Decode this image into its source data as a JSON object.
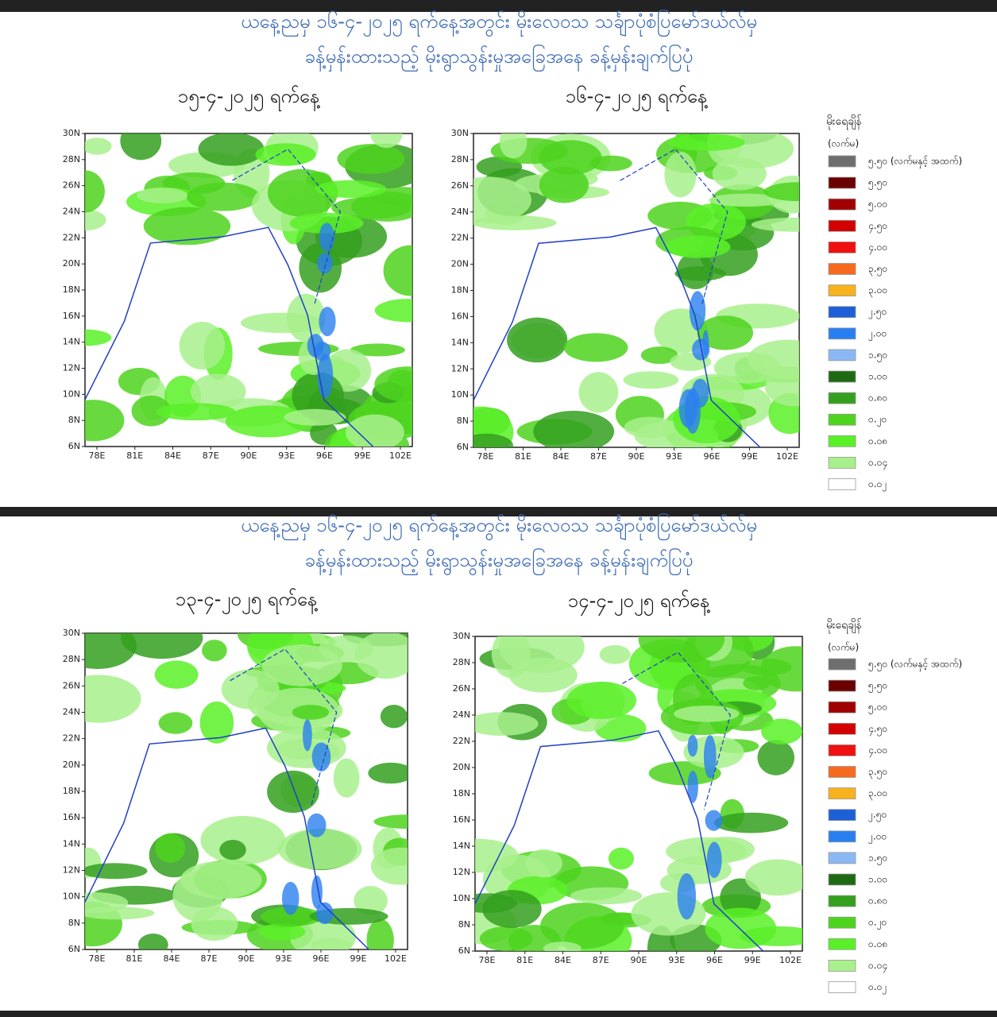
{
  "header": {
    "lines": [
      "ယနေ့ညမှ ၁၆-၄-၂၀၂၅ ရက်နေ့အတွင်း မိုးလေဝသ သင်္ချာပုံစံပြမော်ဒယ်လ်မှ",
      "ခန့်မှန်းထားသည့် မိုးရွာသွန်းမှုအခြေအနေ ခန့်မှန်းချက်ပြပုံ"
    ]
  },
  "maps": [
    {
      "date": "၁၅-၄-၂၀၂၅ ရက်နေ့"
    },
    {
      "date": "၁၆-၄-၂၀၂၅ ရက်နေ့"
    },
    {
      "date": "၁၃-၄-၂၀၂၅ ရက်နေ့"
    },
    {
      "date": "၁၄-၄-၂၀၂၅ ရက်နေ့"
    }
  ],
  "axes": {
    "xticks": [
      "78E",
      "81E",
      "84E",
      "87E",
      "90E",
      "93E",
      "96E",
      "99E",
      "102E"
    ],
    "yticks": [
      "6N",
      "8N",
      "10N",
      "12N",
      "14N",
      "16N",
      "18N",
      "20N",
      "22N",
      "24N",
      "26N",
      "28N",
      "30N"
    ]
  },
  "legend": {
    "title": "မိုးရေချိန်",
    "unit": "(လက်မ)",
    "items": [
      {
        "label": "၅.၅၀ (လက်မနှင့် အထက်)",
        "color": "#6e6e6e"
      },
      {
        "label": "၅.၅၀",
        "color": "#6b0000"
      },
      {
        "label": "၅.၀၀",
        "color": "#a00000"
      },
      {
        "label": "၄.၅၀",
        "color": "#d40000"
      },
      {
        "label": "၄.၀၀",
        "color": "#f01010"
      },
      {
        "label": "၃.၅၀",
        "color": "#f56a1e"
      },
      {
        "label": "၃.၀၀",
        "color": "#f7b21e"
      },
      {
        "label": "၂.၅၀",
        "color": "#1e5fd8"
      },
      {
        "label": "၂.၀၀",
        "color": "#2a7ff0"
      },
      {
        "label": "၁.၅၀",
        "color": "#8ab8f5"
      },
      {
        "label": "၁.၀၀",
        "color": "#1e6a14"
      },
      {
        "label": "၀.၈၀",
        "color": "#34a01e"
      },
      {
        "label": "၀.၂၀",
        "color": "#4ed41e"
      },
      {
        "label": "၀.၀၈",
        "color": "#5af028"
      },
      {
        "label": "၀.၀၄",
        "color": "#a8f08c"
      },
      {
        "label": "၀.၀၂",
        "color": "#ffffff"
      }
    ]
  }
}
